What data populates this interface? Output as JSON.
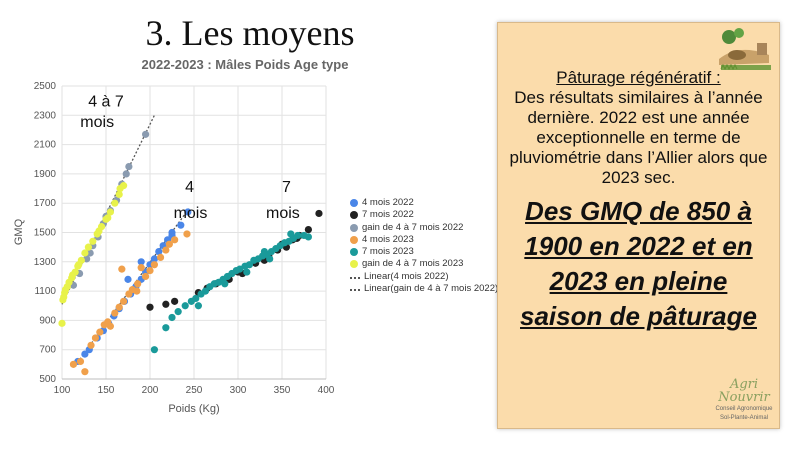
{
  "slide": {
    "title": "3. Les moyens"
  },
  "chart_data": {
    "type": "scatter",
    "title": "2022-2023 : Mâles Poids Age type",
    "xlabel": "Poids (Kg)",
    "ylabel": "GMQ",
    "xlim": [
      100,
      400
    ],
    "ylim": [
      500,
      2500
    ],
    "xticks": [
      100,
      150,
      200,
      250,
      300,
      350,
      400
    ],
    "yticks": [
      500,
      700,
      900,
      1100,
      1300,
      1500,
      1700,
      1900,
      2100,
      2300,
      2500
    ],
    "grid": true,
    "legend_position": "right",
    "annotations": [
      {
        "text": "4 à 7",
        "x": 150,
        "y": 2360
      },
      {
        "text": "mois",
        "x": 140,
        "y": 2220
      },
      {
        "text": "4",
        "x": 245,
        "y": 1775
      },
      {
        "text": "mois",
        "x": 246,
        "y": 1600
      },
      {
        "text": "7",
        "x": 355,
        "y": 1775
      },
      {
        "text": "mois",
        "x": 351,
        "y": 1600
      }
    ],
    "series": [
      {
        "name": "4 mois 2022",
        "color": "#4a86e8",
        "points": [
          [
            118,
            620
          ],
          [
            126,
            670
          ],
          [
            131,
            700
          ],
          [
            140,
            780
          ],
          [
            147,
            830
          ],
          [
            153,
            880
          ],
          [
            159,
            930
          ],
          [
            165,
            980
          ],
          [
            171,
            1030
          ],
          [
            178,
            1080
          ],
          [
            184,
            1130
          ],
          [
            190,
            1180
          ],
          [
            195,
            1230
          ],
          [
            200,
            1280
          ],
          [
            205,
            1320
          ],
          [
            210,
            1370
          ],
          [
            215,
            1410
          ],
          [
            220,
            1450
          ],
          [
            225,
            1480
          ],
          [
            235,
            1550
          ],
          [
            243,
            1640
          ],
          [
            190,
            1300
          ],
          [
            175,
            1180
          ],
          [
            225,
            1500
          ]
        ]
      },
      {
        "name": "7 mois 2022",
        "color": "#222222",
        "points": [
          [
            200,
            990
          ],
          [
            228,
            1030
          ],
          [
            255,
            1090
          ],
          [
            275,
            1150
          ],
          [
            290,
            1180
          ],
          [
            305,
            1220
          ],
          [
            320,
            1290
          ],
          [
            335,
            1340
          ],
          [
            345,
            1380
          ],
          [
            355,
            1400
          ],
          [
            362,
            1450
          ],
          [
            370,
            1480
          ],
          [
            380,
            1520
          ],
          [
            392,
            1630
          ],
          [
            218,
            1010
          ],
          [
            265,
            1120
          ],
          [
            300,
            1230
          ],
          [
            330,
            1310
          ],
          [
            350,
            1420
          ],
          [
            367,
            1460
          ]
        ]
      },
      {
        "name": "gain de 4 à 7 mois 2022",
        "color": "#8a9bb0",
        "points": [
          [
            113,
            1140
          ],
          [
            120,
            1220
          ],
          [
            128,
            1320
          ],
          [
            135,
            1410
          ],
          [
            141,
            1470
          ],
          [
            147,
            1560
          ],
          [
            155,
            1650
          ],
          [
            162,
            1720
          ],
          [
            168,
            1830
          ],
          [
            173,
            1900
          ],
          [
            176,
            1950
          ],
          [
            195,
            2170
          ],
          [
            150,
            1610
          ],
          [
            132,
            1360
          ]
        ]
      },
      {
        "name": "4 mois 2023",
        "color": "#f0a04b",
        "points": [
          [
            113,
            600
          ],
          [
            121,
            620
          ],
          [
            126,
            550
          ],
          [
            133,
            730
          ],
          [
            138,
            780
          ],
          [
            143,
            820
          ],
          [
            148,
            870
          ],
          [
            152,
            890
          ],
          [
            160,
            950
          ],
          [
            165,
            990
          ],
          [
            170,
            1030
          ],
          [
            176,
            1080
          ],
          [
            180,
            1110
          ],
          [
            186,
            1150
          ],
          [
            190,
            1260
          ],
          [
            195,
            1200
          ],
          [
            200,
            1240
          ],
          [
            205,
            1280
          ],
          [
            212,
            1330
          ],
          [
            218,
            1380
          ],
          [
            222,
            1420
          ],
          [
            228,
            1450
          ],
          [
            242,
            1490
          ],
          [
            155,
            860
          ],
          [
            168,
            1250
          ],
          [
            185,
            1100
          ]
        ]
      },
      {
        "name": "7 mois 2023",
        "color": "#1a9a9a",
        "points": [
          [
            205,
            700
          ],
          [
            218,
            850
          ],
          [
            225,
            920
          ],
          [
            232,
            960
          ],
          [
            240,
            1000
          ],
          [
            247,
            1030
          ],
          [
            252,
            1050
          ],
          [
            258,
            1080
          ],
          [
            263,
            1100
          ],
          [
            268,
            1130
          ],
          [
            273,
            1150
          ],
          [
            278,
            1160
          ],
          [
            283,
            1180
          ],
          [
            288,
            1200
          ],
          [
            293,
            1220
          ],
          [
            298,
            1240
          ],
          [
            302,
            1250
          ],
          [
            308,
            1270
          ],
          [
            313,
            1280
          ],
          [
            318,
            1310
          ],
          [
            323,
            1320
          ],
          [
            328,
            1340
          ],
          [
            333,
            1350
          ],
          [
            338,
            1370
          ],
          [
            343,
            1390
          ],
          [
            348,
            1410
          ],
          [
            353,
            1430
          ],
          [
            358,
            1440
          ],
          [
            363,
            1460
          ],
          [
            368,
            1480
          ],
          [
            375,
            1480
          ],
          [
            380,
            1470
          ],
          [
            255,
            1000
          ],
          [
            285,
            1150
          ],
          [
            310,
            1230
          ],
          [
            336,
            1320
          ],
          [
            330,
            1370
          ],
          [
            360,
            1490
          ]
        ]
      },
      {
        "name": "gain de 4 à 7 mois 2023",
        "color": "#e8f24a",
        "points": [
          [
            100,
            880
          ],
          [
            101,
            1040
          ],
          [
            102,
            1060
          ],
          [
            103,
            1090
          ],
          [
            104,
            1110
          ],
          [
            106,
            1130
          ],
          [
            108,
            1160
          ],
          [
            111,
            1190
          ],
          [
            115,
            1230
          ],
          [
            118,
            1270
          ],
          [
            122,
            1310
          ],
          [
            126,
            1360
          ],
          [
            130,
            1400
          ],
          [
            135,
            1440
          ],
          [
            140,
            1490
          ],
          [
            145,
            1540
          ],
          [
            150,
            1590
          ],
          [
            155,
            1640
          ],
          [
            160,
            1700
          ],
          [
            165,
            1760
          ],
          [
            170,
            1820
          ],
          [
            166,
            1800
          ],
          [
            112,
            1210
          ],
          [
            119,
            1280
          ],
          [
            142,
            1510
          ],
          [
            152,
            1600
          ]
        ]
      }
    ],
    "trendlines": [
      {
        "name": "Linear(4 mois 2022)",
        "from": [
          115,
          590
        ],
        "to": [
          245,
          1670
        ]
      },
      {
        "name": "Linear(gain de 4 à 7 mois 2022)",
        "from": [
          100,
          1010
        ],
        "to": [
          205,
          2300
        ]
      }
    ]
  },
  "legend": {
    "items": [
      {
        "label": "4 mois 2022",
        "color": "#4a86e8",
        "kind": "dot"
      },
      {
        "label": "7 mois 2022",
        "color": "#222222",
        "kind": "dot"
      },
      {
        "label": "gain de 4 à 7 mois 2022",
        "color": "#8a9bb0",
        "kind": "dot"
      },
      {
        "label": "4 mois 2023",
        "color": "#f0a04b",
        "kind": "dot"
      },
      {
        "label": "7 mois 2023",
        "color": "#1a9a9a",
        "kind": "dot"
      },
      {
        "label": "gain de 4 à 7 mois 2023",
        "color": "#e8f24a",
        "kind": "dot"
      },
      {
        "label": "Linear(4 mois 2022)",
        "color": "#555555",
        "kind": "dash"
      },
      {
        "label": "Linear(gain de 4 à 7 mois 2022)",
        "color": "#555555",
        "kind": "dash"
      }
    ]
  },
  "panel": {
    "heading": "Pâturage régénératif :",
    "body": "Des résultats similaires à l’année dernière. 2022 est une année exceptionnelle en terme de pluviométrie dans l’Allier alors que 2023 sec.",
    "emphasis": "Des GMQ de 850 à 1900 en 2022 et en 2023 en pleine saison de pâturage",
    "brand_name_1": "Agri",
    "brand_name_2": "Nouvrir",
    "brand_tagline_1": "Conseil Agronomique",
    "brand_tagline_2": "Sol-Plante-Animal",
    "background_color": "#fbdcab"
  }
}
